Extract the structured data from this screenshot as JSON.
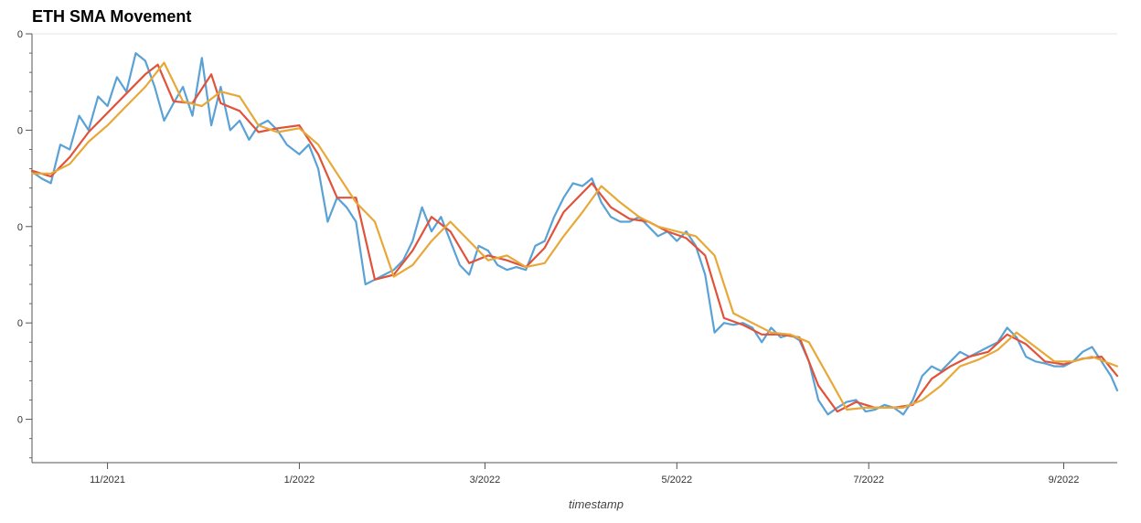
{
  "title": "ETH SMA Movement",
  "chart_data": {
    "type": "line",
    "title": "ETH SMA Movement",
    "xlabel": "timestamp",
    "ylabel": "",
    "x_ticks": [
      "11/2021",
      "1/2022",
      "3/2022",
      "5/2022",
      "7/2022",
      "9/2022"
    ],
    "y_ticks": [
      "0",
      "0",
      "0",
      "0",
      "0"
    ],
    "grid": false,
    "x_range": [
      "2021-10-08",
      "2022-09-18"
    ],
    "ylim": [
      -0.45,
      4.0
    ],
    "series": [
      {
        "color": "#5aa2d6",
        "points": [
          [
            "2021-10-08",
            2.57
          ],
          [
            "2021-10-11",
            2.5
          ],
          [
            "2021-10-14",
            2.45
          ],
          [
            "2021-10-17",
            2.85
          ],
          [
            "2021-10-20",
            2.8
          ],
          [
            "2021-10-23",
            3.15
          ],
          [
            "2021-10-26",
            3.0
          ],
          [
            "2021-10-29",
            3.35
          ],
          [
            "2021-11-01",
            3.25
          ],
          [
            "2021-11-04",
            3.55
          ],
          [
            "2021-11-07",
            3.4
          ],
          [
            "2021-11-10",
            3.8
          ],
          [
            "2021-11-13",
            3.72
          ],
          [
            "2021-11-16",
            3.45
          ],
          [
            "2021-11-19",
            3.1
          ],
          [
            "2021-11-22",
            3.28
          ],
          [
            "2021-11-25",
            3.45
          ],
          [
            "2021-11-28",
            3.15
          ],
          [
            "2021-12-01",
            3.75
          ],
          [
            "2021-12-04",
            3.05
          ],
          [
            "2021-12-07",
            3.45
          ],
          [
            "2021-12-10",
            3.0
          ],
          [
            "2021-12-13",
            3.1
          ],
          [
            "2021-12-16",
            2.9
          ],
          [
            "2021-12-19",
            3.05
          ],
          [
            "2021-12-22",
            3.1
          ],
          [
            "2021-12-25",
            3.0
          ],
          [
            "2021-12-28",
            2.85
          ],
          [
            "2022-01-01",
            2.75
          ],
          [
            "2022-01-04",
            2.85
          ],
          [
            "2022-01-07",
            2.6
          ],
          [
            "2022-01-10",
            2.05
          ],
          [
            "2022-01-13",
            2.3
          ],
          [
            "2022-01-16",
            2.2
          ],
          [
            "2022-01-19",
            2.05
          ],
          [
            "2022-01-22",
            1.4
          ],
          [
            "2022-01-25",
            1.45
          ],
          [
            "2022-01-28",
            1.5
          ],
          [
            "2022-01-31",
            1.55
          ],
          [
            "2022-02-03",
            1.65
          ],
          [
            "2022-02-06",
            1.85
          ],
          [
            "2022-02-09",
            2.2
          ],
          [
            "2022-02-12",
            1.95
          ],
          [
            "2022-02-15",
            2.1
          ],
          [
            "2022-02-18",
            1.85
          ],
          [
            "2022-02-21",
            1.6
          ],
          [
            "2022-02-24",
            1.5
          ],
          [
            "2022-02-27",
            1.8
          ],
          [
            "2022-03-02",
            1.75
          ],
          [
            "2022-03-05",
            1.6
          ],
          [
            "2022-03-08",
            1.55
          ],
          [
            "2022-03-11",
            1.58
          ],
          [
            "2022-03-14",
            1.55
          ],
          [
            "2022-03-17",
            1.8
          ],
          [
            "2022-03-20",
            1.85
          ],
          [
            "2022-03-23",
            2.1
          ],
          [
            "2022-03-26",
            2.3
          ],
          [
            "2022-03-29",
            2.45
          ],
          [
            "2022-04-01",
            2.42
          ],
          [
            "2022-04-04",
            2.5
          ],
          [
            "2022-04-07",
            2.25
          ],
          [
            "2022-04-10",
            2.1
          ],
          [
            "2022-04-13",
            2.05
          ],
          [
            "2022-04-16",
            2.05
          ],
          [
            "2022-04-19",
            2.1
          ],
          [
            "2022-04-22",
            2.0
          ],
          [
            "2022-04-25",
            1.9
          ],
          [
            "2022-04-28",
            1.95
          ],
          [
            "2022-05-01",
            1.85
          ],
          [
            "2022-05-04",
            1.95
          ],
          [
            "2022-05-07",
            1.8
          ],
          [
            "2022-05-10",
            1.5
          ],
          [
            "2022-05-13",
            0.9
          ],
          [
            "2022-05-16",
            1.0
          ],
          [
            "2022-05-19",
            0.98
          ],
          [
            "2022-05-22",
            1.0
          ],
          [
            "2022-05-25",
            0.95
          ],
          [
            "2022-05-28",
            0.8
          ],
          [
            "2022-05-31",
            0.95
          ],
          [
            "2022-06-03",
            0.85
          ],
          [
            "2022-06-06",
            0.88
          ],
          [
            "2022-06-09",
            0.82
          ],
          [
            "2022-06-12",
            0.6
          ],
          [
            "2022-06-15",
            0.2
          ],
          [
            "2022-06-18",
            0.05
          ],
          [
            "2022-06-21",
            0.12
          ],
          [
            "2022-06-24",
            0.18
          ],
          [
            "2022-06-27",
            0.2
          ],
          [
            "2022-06-30",
            0.08
          ],
          [
            "2022-07-03",
            0.1
          ],
          [
            "2022-07-06",
            0.15
          ],
          [
            "2022-07-09",
            0.12
          ],
          [
            "2022-07-12",
            0.05
          ],
          [
            "2022-07-15",
            0.2
          ],
          [
            "2022-07-18",
            0.45
          ],
          [
            "2022-07-21",
            0.55
          ],
          [
            "2022-07-24",
            0.5
          ],
          [
            "2022-07-27",
            0.6
          ],
          [
            "2022-07-30",
            0.7
          ],
          [
            "2022-08-02",
            0.65
          ],
          [
            "2022-08-05",
            0.7
          ],
          [
            "2022-08-08",
            0.75
          ],
          [
            "2022-08-11",
            0.8
          ],
          [
            "2022-08-14",
            0.95
          ],
          [
            "2022-08-17",
            0.85
          ],
          [
            "2022-08-20",
            0.65
          ],
          [
            "2022-08-23",
            0.6
          ],
          [
            "2022-08-26",
            0.58
          ],
          [
            "2022-08-29",
            0.55
          ],
          [
            "2022-09-01",
            0.55
          ],
          [
            "2022-09-04",
            0.6
          ],
          [
            "2022-09-07",
            0.7
          ],
          [
            "2022-09-10",
            0.75
          ],
          [
            "2022-09-13",
            0.6
          ],
          [
            "2022-09-16",
            0.45
          ],
          [
            "2022-09-18",
            0.3
          ]
        ]
      },
      {
        "color": "#e0523a",
        "points": [
          [
            "2021-10-08",
            2.58
          ],
          [
            "2021-10-14",
            2.52
          ],
          [
            "2021-10-20",
            2.72
          ],
          [
            "2021-10-26",
            2.98
          ],
          [
            "2021-11-01",
            3.18
          ],
          [
            "2021-11-07",
            3.38
          ],
          [
            "2021-11-13",
            3.58
          ],
          [
            "2021-11-17",
            3.68
          ],
          [
            "2021-11-22",
            3.3
          ],
          [
            "2021-11-28",
            3.28
          ],
          [
            "2021-12-04",
            3.58
          ],
          [
            "2021-12-07",
            3.28
          ],
          [
            "2021-12-13",
            3.2
          ],
          [
            "2021-12-19",
            2.98
          ],
          [
            "2021-12-25",
            3.02
          ],
          [
            "2022-01-01",
            3.05
          ],
          [
            "2022-01-07",
            2.75
          ],
          [
            "2022-01-13",
            2.3
          ],
          [
            "2022-01-19",
            2.3
          ],
          [
            "2022-01-25",
            1.45
          ],
          [
            "2022-01-31",
            1.5
          ],
          [
            "2022-02-06",
            1.75
          ],
          [
            "2022-02-12",
            2.1
          ],
          [
            "2022-02-18",
            1.95
          ],
          [
            "2022-02-24",
            1.62
          ],
          [
            "2022-03-02",
            1.7
          ],
          [
            "2022-03-08",
            1.65
          ],
          [
            "2022-03-14",
            1.58
          ],
          [
            "2022-03-20",
            1.78
          ],
          [
            "2022-03-26",
            2.15
          ],
          [
            "2022-04-04",
            2.45
          ],
          [
            "2022-04-10",
            2.2
          ],
          [
            "2022-04-16",
            2.08
          ],
          [
            "2022-04-22",
            2.05
          ],
          [
            "2022-04-28",
            1.95
          ],
          [
            "2022-05-04",
            1.88
          ],
          [
            "2022-05-10",
            1.7
          ],
          [
            "2022-05-16",
            1.05
          ],
          [
            "2022-05-22",
            0.98
          ],
          [
            "2022-05-28",
            0.88
          ],
          [
            "2022-06-03",
            0.88
          ],
          [
            "2022-06-09",
            0.85
          ],
          [
            "2022-06-15",
            0.35
          ],
          [
            "2022-06-21",
            0.08
          ],
          [
            "2022-06-27",
            0.18
          ],
          [
            "2022-07-03",
            0.12
          ],
          [
            "2022-07-09",
            0.12
          ],
          [
            "2022-07-15",
            0.15
          ],
          [
            "2022-07-21",
            0.42
          ],
          [
            "2022-07-27",
            0.55
          ],
          [
            "2022-08-02",
            0.65
          ],
          [
            "2022-08-08",
            0.7
          ],
          [
            "2022-08-14",
            0.88
          ],
          [
            "2022-08-20",
            0.78
          ],
          [
            "2022-08-26",
            0.6
          ],
          [
            "2022-09-01",
            0.57
          ],
          [
            "2022-09-07",
            0.63
          ],
          [
            "2022-09-13",
            0.65
          ],
          [
            "2022-09-18",
            0.45
          ]
        ]
      },
      {
        "color": "#e8a838",
        "points": [
          [
            "2021-10-08",
            2.55
          ],
          [
            "2021-10-14",
            2.55
          ],
          [
            "2021-10-20",
            2.65
          ],
          [
            "2021-10-26",
            2.88
          ],
          [
            "2021-11-01",
            3.05
          ],
          [
            "2021-11-07",
            3.25
          ],
          [
            "2021-11-13",
            3.45
          ],
          [
            "2021-11-19",
            3.7
          ],
          [
            "2021-11-25",
            3.3
          ],
          [
            "2021-12-01",
            3.25
          ],
          [
            "2021-12-07",
            3.4
          ],
          [
            "2021-12-13",
            3.35
          ],
          [
            "2021-12-19",
            3.05
          ],
          [
            "2021-12-25",
            2.98
          ],
          [
            "2022-01-01",
            3.02
          ],
          [
            "2022-01-07",
            2.85
          ],
          [
            "2022-01-13",
            2.55
          ],
          [
            "2022-01-19",
            2.25
          ],
          [
            "2022-01-25",
            2.05
          ],
          [
            "2022-01-31",
            1.48
          ],
          [
            "2022-02-06",
            1.6
          ],
          [
            "2022-02-12",
            1.85
          ],
          [
            "2022-02-18",
            2.05
          ],
          [
            "2022-02-24",
            1.85
          ],
          [
            "2022-03-02",
            1.65
          ],
          [
            "2022-03-08",
            1.7
          ],
          [
            "2022-03-14",
            1.58
          ],
          [
            "2022-03-20",
            1.62
          ],
          [
            "2022-03-26",
            1.9
          ],
          [
            "2022-04-01",
            2.15
          ],
          [
            "2022-04-07",
            2.42
          ],
          [
            "2022-04-13",
            2.25
          ],
          [
            "2022-04-19",
            2.1
          ],
          [
            "2022-04-25",
            2.0
          ],
          [
            "2022-05-01",
            1.95
          ],
          [
            "2022-05-07",
            1.9
          ],
          [
            "2022-05-13",
            1.7
          ],
          [
            "2022-05-19",
            1.1
          ],
          [
            "2022-05-25",
            1.0
          ],
          [
            "2022-05-31",
            0.9
          ],
          [
            "2022-06-06",
            0.88
          ],
          [
            "2022-06-12",
            0.8
          ],
          [
            "2022-06-18",
            0.45
          ],
          [
            "2022-06-24",
            0.1
          ],
          [
            "2022-06-30",
            0.12
          ],
          [
            "2022-07-06",
            0.12
          ],
          [
            "2022-07-12",
            0.12
          ],
          [
            "2022-07-18",
            0.2
          ],
          [
            "2022-07-24",
            0.35
          ],
          [
            "2022-07-30",
            0.55
          ],
          [
            "2022-08-05",
            0.62
          ],
          [
            "2022-08-11",
            0.72
          ],
          [
            "2022-08-17",
            0.9
          ],
          [
            "2022-08-23",
            0.75
          ],
          [
            "2022-08-29",
            0.6
          ],
          [
            "2022-09-04",
            0.6
          ],
          [
            "2022-09-10",
            0.65
          ],
          [
            "2022-09-18",
            0.55
          ]
        ]
      }
    ]
  }
}
